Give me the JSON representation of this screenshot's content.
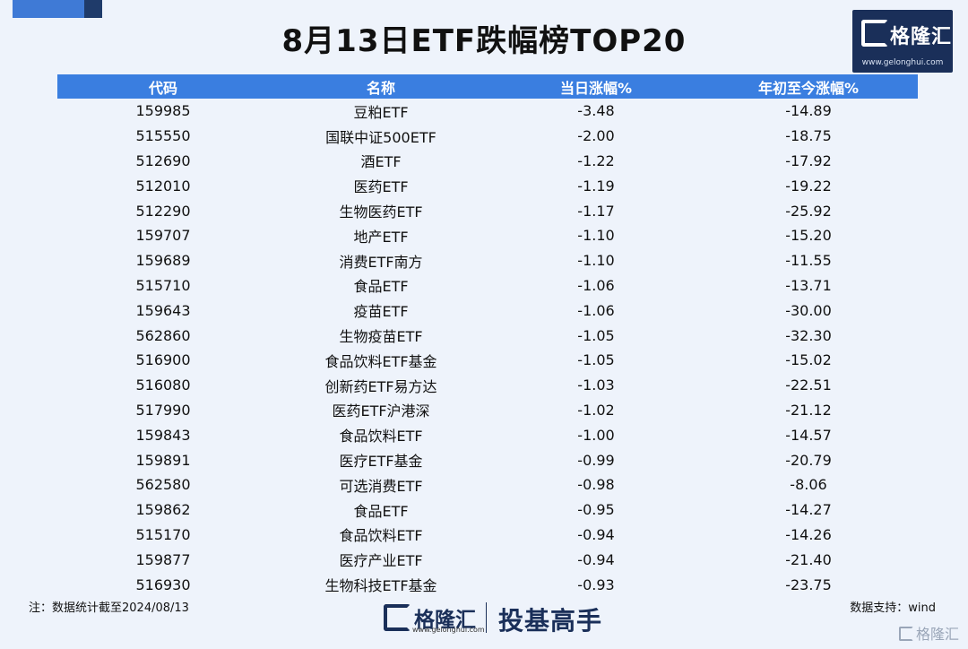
{
  "title": "8月13日ETF跌幅榜TOP20",
  "logo": {
    "brand": "格隆汇",
    "url": "www.gelonghui.com"
  },
  "table": {
    "headers": [
      "代码",
      "名称",
      "当日涨幅%",
      "年初至今涨幅%"
    ],
    "rows": [
      [
        "159985",
        "豆粕ETF",
        "-3.48",
        "-14.89"
      ],
      [
        "515550",
        "国联中证500ETF",
        "-2.00",
        "-18.75"
      ],
      [
        "512690",
        "酒ETF",
        "-1.22",
        "-17.92"
      ],
      [
        "512010",
        "医药ETF",
        "-1.19",
        "-19.22"
      ],
      [
        "512290",
        "生物医药ETF",
        "-1.17",
        "-25.92"
      ],
      [
        "159707",
        "地产ETF",
        "-1.10",
        "-15.20"
      ],
      [
        "159689",
        "消费ETF南方",
        "-1.10",
        "-11.55"
      ],
      [
        "515710",
        "食品ETF",
        "-1.06",
        "-13.71"
      ],
      [
        "159643",
        "疫苗ETF",
        "-1.06",
        "-30.00"
      ],
      [
        "562860",
        "生物疫苗ETF",
        "-1.05",
        "-32.30"
      ],
      [
        "516900",
        "食品饮料ETF基金",
        "-1.05",
        "-15.02"
      ],
      [
        "516080",
        "创新药ETF易方达",
        "-1.03",
        "-22.51"
      ],
      [
        "517990",
        "医药ETF沪港深",
        "-1.02",
        "-21.12"
      ],
      [
        "159843",
        "食品饮料ETF",
        "-1.00",
        "-14.57"
      ],
      [
        "159891",
        "医疗ETF基金",
        "-0.99",
        "-20.79"
      ],
      [
        "562580",
        "可选消费ETF",
        "-0.98",
        "-8.06"
      ],
      [
        "159862",
        "食品ETF",
        "-0.95",
        "-14.27"
      ],
      [
        "515170",
        "食品饮料ETF",
        "-0.94",
        "-14.26"
      ],
      [
        "159877",
        "医疗产业ETF",
        "-0.94",
        "-21.40"
      ],
      [
        "516930",
        "生物科技ETF基金",
        "-0.93",
        "-23.75"
      ]
    ]
  },
  "footer": {
    "note": "注：数据统计截至2024/08/13",
    "source": "数据支持：wind",
    "brand": "格隆汇",
    "url": "www.gelonghui.com",
    "slogan": "投基高手",
    "watermark": "格隆汇"
  },
  "colors": {
    "header_bg": "#3a7ee0",
    "negative": "#21a04a",
    "brand_navy": "#1a2f59",
    "background": "#eef3fb"
  }
}
